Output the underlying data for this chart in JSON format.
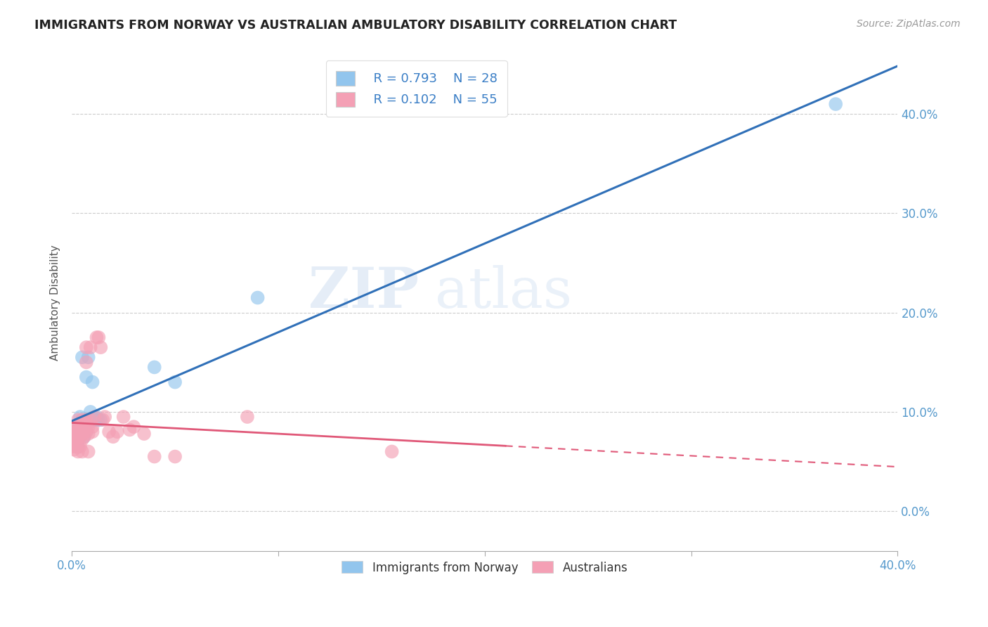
{
  "title": "IMMIGRANTS FROM NORWAY VS AUSTRALIAN AMBULATORY DISABILITY CORRELATION CHART",
  "source": "Source: ZipAtlas.com",
  "xlabel": "",
  "ylabel": "Ambulatory Disability",
  "xlim": [
    0.0,
    0.4
  ],
  "ylim": [
    -0.04,
    0.46
  ],
  "yticks": [
    0.0,
    0.1,
    0.2,
    0.3,
    0.4
  ],
  "xticks": [
    0.0,
    0.1,
    0.2,
    0.3,
    0.4
  ],
  "legend_r1": "R = 0.793",
  "legend_n1": "N = 28",
  "legend_r2": "R = 0.102",
  "legend_n2": "N = 55",
  "blue_color": "#92C5ED",
  "pink_color": "#F4A0B5",
  "blue_line_color": "#3070B8",
  "pink_line_color": "#E05878",
  "background_color": "#ffffff",
  "grid_color": "#cccccc",
  "norway_x": [
    0.001,
    0.002,
    0.003,
    0.003,
    0.004,
    0.004,
    0.005,
    0.005,
    0.005,
    0.006,
    0.006,
    0.007,
    0.007,
    0.008,
    0.008,
    0.009,
    0.009,
    0.01,
    0.01,
    0.011,
    0.012,
    0.012,
    0.013,
    0.014,
    0.04,
    0.05,
    0.09,
    0.37
  ],
  "norway_y": [
    0.082,
    0.075,
    0.072,
    0.065,
    0.08,
    0.095,
    0.078,
    0.092,
    0.155,
    0.085,
    0.075,
    0.135,
    0.08,
    0.092,
    0.155,
    0.1,
    0.09,
    0.13,
    0.092,
    0.092,
    0.095,
    0.092,
    0.092,
    0.092,
    0.145,
    0.13,
    0.215,
    0.41
  ],
  "aussie_x": [
    0.0,
    0.0,
    0.0,
    0.001,
    0.001,
    0.001,
    0.002,
    0.002,
    0.002,
    0.002,
    0.003,
    0.003,
    0.003,
    0.003,
    0.003,
    0.004,
    0.004,
    0.004,
    0.004,
    0.005,
    0.005,
    0.005,
    0.005,
    0.005,
    0.006,
    0.006,
    0.006,
    0.007,
    0.007,
    0.007,
    0.007,
    0.008,
    0.008,
    0.008,
    0.009,
    0.009,
    0.01,
    0.01,
    0.011,
    0.012,
    0.013,
    0.014,
    0.015,
    0.016,
    0.018,
    0.02,
    0.022,
    0.025,
    0.028,
    0.03,
    0.035,
    0.04,
    0.05,
    0.085,
    0.155
  ],
  "aussie_y": [
    0.075,
    0.07,
    0.065,
    0.08,
    0.072,
    0.062,
    0.085,
    0.08,
    0.075,
    0.065,
    0.092,
    0.085,
    0.075,
    0.065,
    0.06,
    0.085,
    0.08,
    0.075,
    0.065,
    0.092,
    0.085,
    0.078,
    0.072,
    0.06,
    0.09,
    0.082,
    0.075,
    0.165,
    0.15,
    0.092,
    0.08,
    0.085,
    0.078,
    0.06,
    0.165,
    0.092,
    0.085,
    0.08,
    0.095,
    0.175,
    0.175,
    0.165,
    0.092,
    0.095,
    0.08,
    0.075,
    0.08,
    0.095,
    0.082,
    0.085,
    0.078,
    0.055,
    0.055,
    0.095,
    0.06
  ],
  "pink_line_solid_end": 0.21,
  "pink_line_dash_start": 0.21,
  "pink_line_end": 0.4
}
